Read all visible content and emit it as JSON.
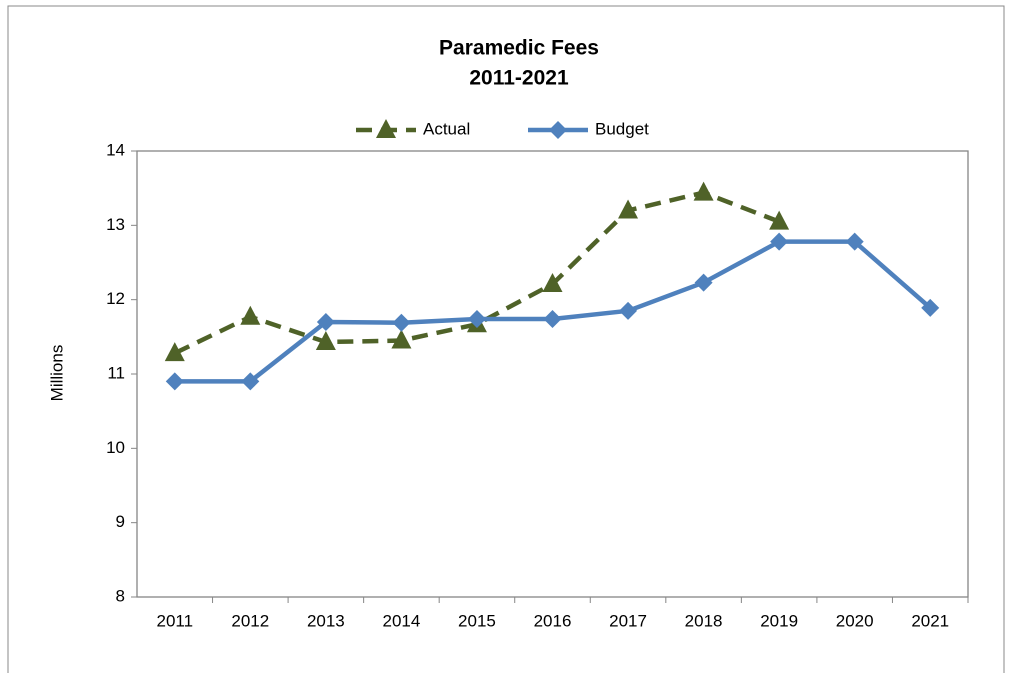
{
  "chart_data": {
    "type": "line",
    "title": [
      "Paramedic Fees",
      "2011-2021"
    ],
    "ylabel": "Millions",
    "categories": [
      "2011",
      "2012",
      "2013",
      "2014",
      "2015",
      "2016",
      "2017",
      "2018",
      "2019",
      "2020",
      "2021"
    ],
    "series": [
      {
        "name": "Actual",
        "color": "#4f6228",
        "style": "dashed",
        "marker": "triangle",
        "values": [
          11.28,
          11.77,
          11.43,
          11.45,
          11.67,
          12.21,
          13.2,
          13.44,
          13.05,
          null,
          null
        ]
      },
      {
        "name": "Budget",
        "color": "#4f81bd",
        "style": "solid",
        "marker": "diamond",
        "values": [
          10.9,
          10.9,
          11.7,
          11.69,
          11.74,
          11.74,
          11.85,
          12.23,
          12.78,
          12.78,
          11.89
        ]
      }
    ],
    "ylim": [
      8,
      14
    ],
    "yticks": [
      8,
      9,
      10,
      11,
      12,
      13,
      14
    ],
    "grid": false,
    "legend": "top"
  }
}
